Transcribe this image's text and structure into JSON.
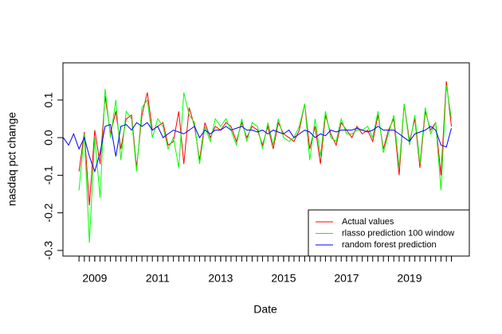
{
  "chart_data": {
    "type": "line",
    "xlabel": "Date",
    "ylabel": "nasdaq pct change",
    "x": [
      2008.0,
      2008.17,
      2008.33,
      2008.5,
      2008.67,
      2008.83,
      2009.0,
      2009.17,
      2009.33,
      2009.5,
      2009.67,
      2009.83,
      2010.0,
      2010.17,
      2010.33,
      2010.5,
      2010.67,
      2010.83,
      2011.0,
      2011.17,
      2011.33,
      2011.5,
      2011.67,
      2011.83,
      2012.0,
      2012.17,
      2012.33,
      2012.5,
      2012.67,
      2012.83,
      2013.0,
      2013.17,
      2013.33,
      2013.5,
      2013.67,
      2013.83,
      2014.0,
      2014.17,
      2014.33,
      2014.5,
      2014.67,
      2014.83,
      2015.0,
      2015.17,
      2015.33,
      2015.5,
      2015.67,
      2015.83,
      2016.0,
      2016.17,
      2016.33,
      2016.5,
      2016.67,
      2016.83,
      2017.0,
      2017.17,
      2017.33,
      2017.5,
      2017.67,
      2017.83,
      2018.0,
      2018.17,
      2018.33,
      2018.5,
      2018.67,
      2018.83,
      2019.0,
      2019.17,
      2019.33,
      2019.5,
      2019.67,
      2019.83,
      2020.0,
      2020.17,
      2020.33
    ],
    "series": [
      {
        "name": "Actual values",
        "color": "#ff0000",
        "values": [
          null,
          null,
          null,
          -0.09,
          0.015,
          -0.18,
          0.02,
          -0.07,
          0.11,
          0.01,
          0.07,
          -0.03,
          0.05,
          0.06,
          -0.08,
          0.06,
          0.12,
          0.02,
          0.03,
          0.04,
          -0.02,
          -0.01,
          0.07,
          -0.07,
          0.08,
          0.03,
          -0.06,
          0.04,
          0.0,
          0.03,
          0.02,
          0.04,
          0.03,
          -0.01,
          0.04,
          0.0,
          0.03,
          0.02,
          -0.02,
          0.03,
          -0.03,
          0.04,
          0.01,
          0.0,
          -0.01,
          0.02,
          0.09,
          -0.03,
          0.03,
          -0.07,
          0.06,
          0.01,
          -0.02,
          0.04,
          0.02,
          0.0,
          0.03,
          0.01,
          0.02,
          -0.01,
          0.06,
          -0.03,
          0.02,
          0.05,
          -0.1,
          0.09,
          -0.01,
          0.05,
          -0.08,
          0.07,
          0.02,
          0.04,
          -0.1,
          0.15,
          0.03
        ]
      },
      {
        "name": "rlasso prediction 100 window",
        "color": "#00ff00",
        "values": [
          null,
          null,
          null,
          -0.14,
          0.01,
          -0.28,
          0.0,
          -0.16,
          0.13,
          0.0,
          0.1,
          -0.06,
          0.07,
          0.05,
          -0.09,
          0.08,
          0.1,
          0.0,
          0.05,
          0.03,
          -0.03,
          0.0,
          -0.08,
          0.12,
          0.06,
          0.04,
          -0.07,
          0.03,
          -0.01,
          0.05,
          0.03,
          0.05,
          0.02,
          -0.02,
          0.05,
          -0.01,
          0.04,
          0.03,
          -0.03,
          0.04,
          -0.02,
          0.05,
          0.0,
          -0.01,
          0.0,
          0.03,
          0.09,
          -0.06,
          0.05,
          -0.05,
          0.07,
          0.0,
          -0.01,
          0.05,
          0.01,
          0.01,
          0.02,
          0.02,
          0.03,
          0.0,
          0.07,
          -0.04,
          0.01,
          0.06,
          -0.08,
          0.09,
          -0.02,
          0.06,
          -0.07,
          0.08,
          0.01,
          0.04,
          -0.14,
          0.14,
          0.05
        ]
      },
      {
        "name": "random forest prediction",
        "color": "#0000ff",
        "values": [
          0.0,
          -0.02,
          0.01,
          -0.03,
          0.0,
          -0.05,
          -0.09,
          -0.04,
          0.03,
          0.035,
          -0.05,
          0.03,
          0.035,
          0.02,
          0.04,
          0.03,
          0.04,
          0.02,
          0.03,
          0.0,
          0.01,
          0.02,
          0.015,
          0.01,
          0.02,
          0.03,
          0.0,
          0.02,
          0.01,
          0.02,
          0.02,
          0.03,
          0.02,
          0.025,
          0.03,
          0.02,
          0.02,
          0.015,
          0.02,
          0.01,
          0.02,
          0.015,
          0.01,
          0.02,
          0.0,
          0.01,
          0.02,
          0.015,
          0.0,
          0.01,
          0.005,
          0.02,
          0.015,
          0.02,
          0.02,
          0.02,
          0.025,
          0.02,
          0.015,
          0.02,
          0.03,
          0.02,
          0.02,
          0.02,
          0.01,
          0.0,
          -0.01,
          0.01,
          0.015,
          0.02,
          0.03,
          0.02,
          -0.02,
          -0.025,
          0.025
        ]
      }
    ],
    "xlim": [
      2007.99,
      2020.9
    ],
    "xticks": [
      2009,
      2011,
      2013,
      2015,
      2017,
      2019
    ],
    "ylim": [
      -0.315,
      0.199
    ],
    "yticks": [
      0.1,
      {
        "value": 0,
        "label": "0.0"
      },
      -0.1,
      -0.2,
      -0.3
    ],
    "legend": "bottom-right"
  }
}
